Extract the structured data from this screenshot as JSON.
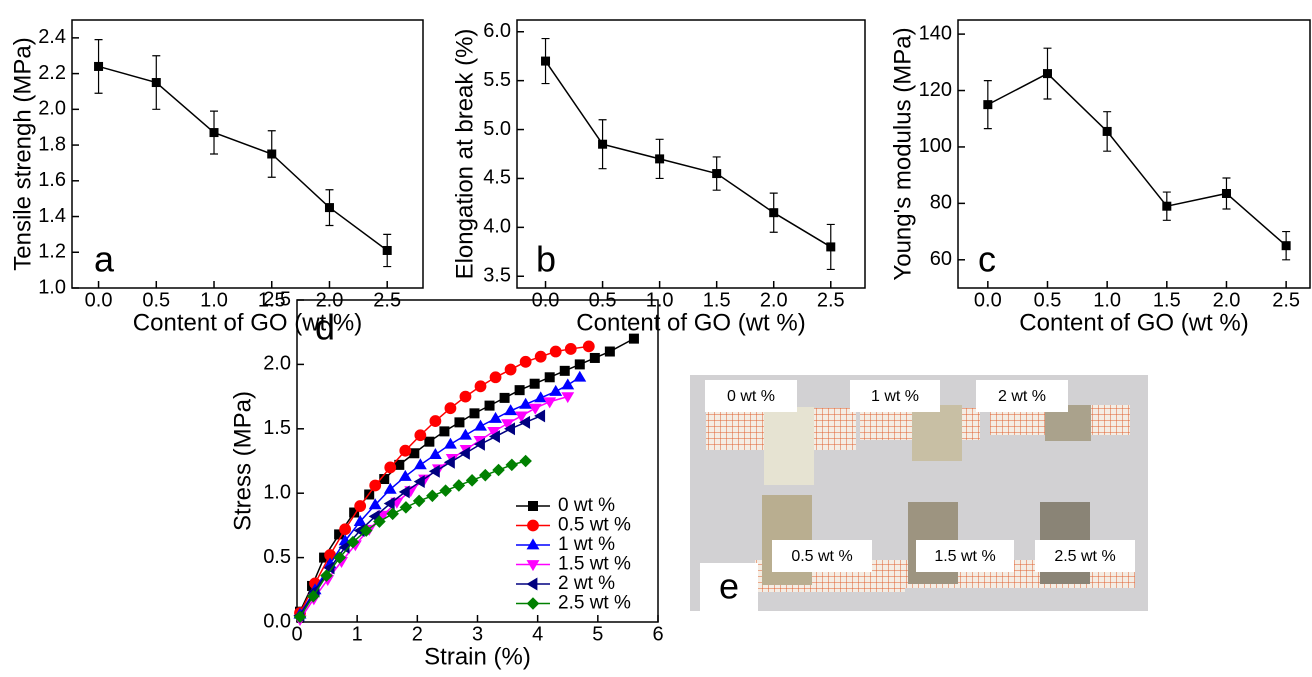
{
  "chart_data": [
    {
      "type": "errorline",
      "panel_label": "a",
      "ylabel": "Tensile strengh (MPa)",
      "xlabel": "Content of GO (wt %)",
      "x": [
        0,
        0.5,
        1,
        1.5,
        2,
        2.5
      ],
      "values": [
        2.24,
        2.15,
        1.87,
        1.75,
        1.45,
        1.21
      ],
      "errors": [
        0.15,
        0.15,
        0.12,
        0.13,
        0.1,
        0.09
      ],
      "color": "#000000",
      "marker": "square",
      "xlim": [
        -0.23,
        2.81
      ],
      "ylim": [
        1.0,
        2.5
      ],
      "xticks": [
        {
          "value": 0,
          "label": "0.0"
        },
        0.5,
        {
          "value": 1,
          "label": "1.0"
        },
        1.5,
        {
          "value": 2,
          "label": "2.0"
        },
        2.5
      ],
      "yticks": [
        {
          "value": 1,
          "label": "1.0"
        },
        1.2,
        1.4,
        1.6,
        1.8,
        {
          "value": 2,
          "label": "2.0"
        },
        2.2,
        2.4
      ]
    },
    {
      "type": "errorline",
      "panel_label": "b",
      "ylabel": "Elongation at break (%)",
      "xlabel": "Content of GO (wt %)",
      "x": [
        0,
        0.5,
        1,
        1.5,
        2,
        2.5
      ],
      "values": [
        5.7,
        4.85,
        4.7,
        4.55,
        4.15,
        3.8
      ],
      "errors": [
        0.23,
        0.25,
        0.2,
        0.17,
        0.2,
        0.23
      ],
      "color": "#000000",
      "marker": "square",
      "xlim": [
        -0.25,
        2.8
      ],
      "ylim": [
        3.38,
        6.12
      ],
      "xticks": [
        {
          "value": 0,
          "label": "0.0"
        },
        0.5,
        {
          "value": 1,
          "label": "1.0"
        },
        1.5,
        {
          "value": 2,
          "label": "2.0"
        },
        2.5
      ],
      "yticks": [
        3.5,
        {
          "value": 4,
          "label": "4.0"
        },
        4.5,
        {
          "value": 5,
          "label": "5.0"
        },
        5.5,
        {
          "value": 6,
          "label": "6.0"
        }
      ]
    },
    {
      "type": "errorline",
      "panel_label": "c",
      "ylabel": "Young's modulus (MPa)",
      "xlabel": "Content of GO (wt %)",
      "x": [
        0,
        0.5,
        1,
        1.5,
        2,
        2.5
      ],
      "values": [
        115,
        126,
        105.5,
        79,
        83.5,
        65
      ],
      "errors": [
        8.5,
        9,
        7,
        5,
        5.5,
        5
      ],
      "color": "#000000",
      "marker": "square",
      "xlim": [
        -0.25,
        2.7
      ],
      "ylim": [
        50,
        145
      ],
      "xticks": [
        {
          "value": 0,
          "label": "0.0"
        },
        0.5,
        {
          "value": 1,
          "label": "1.0"
        },
        1.5,
        {
          "value": 2,
          "label": "2.0"
        },
        2.5
      ],
      "yticks": [
        60,
        80,
        100,
        120,
        140
      ]
    },
    {
      "type": "line",
      "panel_label": "d",
      "ylabel": "Stress (MPa)",
      "xlabel": "Strain (%)",
      "xlim": [
        0,
        6
      ],
      "ylim": [
        0,
        2.5
      ],
      "xticks": [
        0,
        1,
        2,
        3,
        4,
        5,
        6
      ],
      "yticks": [
        {
          "value": 0,
          "label": "0.0"
        },
        0.5,
        {
          "value": 1,
          "label": "1.0"
        },
        1.5,
        {
          "value": 2,
          "label": "2.0"
        },
        2.5
      ],
      "series": [
        {
          "name": "0 wt %",
          "color": "#000000",
          "marker": "square",
          "x": [
            0.05,
            0.25,
            0.45,
            0.7,
            0.95,
            1.2,
            1.45,
            1.7,
            1.95,
            2.2,
            2.45,
            2.7,
            2.95,
            3.2,
            3.45,
            3.7,
            3.95,
            4.2,
            4.45,
            4.7,
            4.95,
            5.2,
            5.6
          ],
          "values": [
            0.08,
            0.28,
            0.5,
            0.68,
            0.85,
            0.99,
            1.11,
            1.22,
            1.31,
            1.4,
            1.48,
            1.55,
            1.62,
            1.68,
            1.74,
            1.8,
            1.85,
            1.9,
            1.95,
            2.0,
            2.05,
            2.1,
            2.2
          ]
        },
        {
          "name": "0.5 wt %",
          "color": "#ff0000",
          "marker": "circle",
          "x": [
            0.05,
            0.3,
            0.55,
            0.8,
            1.05,
            1.3,
            1.55,
            1.8,
            2.05,
            2.3,
            2.55,
            2.8,
            3.05,
            3.3,
            3.55,
            3.8,
            4.05,
            4.3,
            4.55,
            4.85
          ],
          "values": [
            0.07,
            0.3,
            0.52,
            0.72,
            0.9,
            1.06,
            1.2,
            1.33,
            1.45,
            1.56,
            1.66,
            1.75,
            1.83,
            1.9,
            1.96,
            2.02,
            2.06,
            2.1,
            2.12,
            2.14
          ]
        },
        {
          "name": "1 wt %",
          "color": "#0000ff",
          "marker": "triangle-up",
          "x": [
            0.05,
            0.3,
            0.55,
            0.8,
            1.05,
            1.3,
            1.55,
            1.8,
            2.05,
            2.3,
            2.55,
            2.8,
            3.05,
            3.3,
            3.55,
            3.8,
            4.05,
            4.3,
            4.5,
            4.7
          ],
          "values": [
            0.06,
            0.25,
            0.45,
            0.63,
            0.78,
            0.91,
            1.03,
            1.13,
            1.22,
            1.3,
            1.38,
            1.45,
            1.52,
            1.58,
            1.64,
            1.69,
            1.74,
            1.79,
            1.84,
            1.9
          ]
        },
        {
          "name": "1.5 wt %",
          "color": "#ff00ff",
          "marker": "triangle-down",
          "x": [
            0.05,
            0.28,
            0.51,
            0.74,
            0.97,
            1.2,
            1.43,
            1.66,
            1.89,
            2.12,
            2.35,
            2.58,
            2.81,
            3.04,
            3.27,
            3.5,
            3.73,
            3.96,
            4.2,
            4.5
          ],
          "values": [
            0.02,
            0.18,
            0.33,
            0.47,
            0.6,
            0.72,
            0.83,
            0.93,
            1.02,
            1.11,
            1.19,
            1.27,
            1.34,
            1.41,
            1.48,
            1.54,
            1.6,
            1.66,
            1.71,
            1.75
          ]
        },
        {
          "name": "2 wt %",
          "color": "#000080",
          "marker": "triangle-left",
          "x": [
            0.05,
            0.3,
            0.55,
            0.8,
            1.05,
            1.3,
            1.55,
            1.8,
            2.05,
            2.3,
            2.55,
            2.8,
            3.05,
            3.3,
            3.55,
            3.8,
            4.05
          ],
          "values": [
            0.05,
            0.24,
            0.42,
            0.58,
            0.71,
            0.82,
            0.92,
            1.01,
            1.09,
            1.17,
            1.24,
            1.31,
            1.38,
            1.44,
            1.5,
            1.55,
            1.6
          ]
        },
        {
          "name": "2.5 wt %",
          "color": "#008000",
          "marker": "diamond",
          "x": [
            0.05,
            0.27,
            0.49,
            0.71,
            0.93,
            1.15,
            1.37,
            1.59,
            1.81,
            2.03,
            2.25,
            2.47,
            2.69,
            2.91,
            3.13,
            3.35,
            3.57,
            3.8
          ],
          "values": [
            0.04,
            0.2,
            0.36,
            0.5,
            0.62,
            0.71,
            0.78,
            0.84,
            0.89,
            0.94,
            0.98,
            1.02,
            1.06,
            1.1,
            1.14,
            1.18,
            1.22,
            1.25
          ]
        }
      ]
    },
    {
      "type": "photo",
      "panel_label": "e",
      "labels": [
        "0 wt %",
        "1 wt %",
        "2 wt %",
        "0.5 wt %",
        "1.5 wt %",
        "2.5 wt %"
      ]
    }
  ]
}
